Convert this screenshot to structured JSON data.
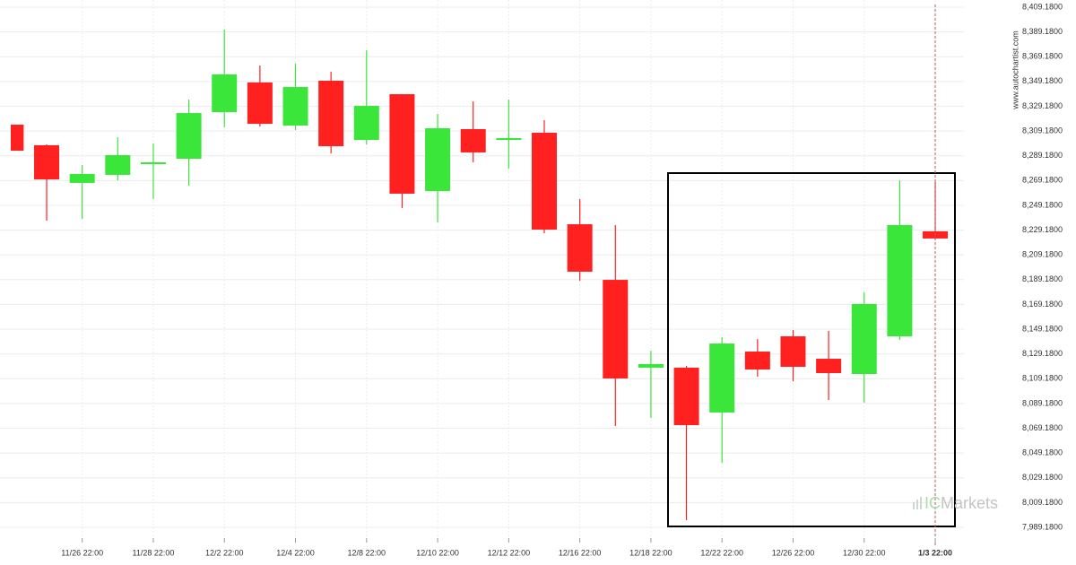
{
  "chart_data": {
    "type": "candlestick",
    "categories": [
      null,
      null,
      "11/26 22:00",
      null,
      "11/28 22:00",
      null,
      "12/2 22:00",
      null,
      "12/4 22:00",
      null,
      "12/8 22:00",
      null,
      "12/10 22:00",
      null,
      "12/12 22:00",
      null,
      "12/16 22:00",
      null,
      "12/18 22:00",
      null,
      "12/22 22:00",
      null,
      "12/26 22:00",
      null,
      "12/30 22:00",
      null,
      "1/3 22:00"
    ],
    "open": [
      8314.3,
      8297.7,
      8267.3,
      8273.8,
      8282.5,
      8286.8,
      8324.4,
      8348.4,
      8313.6,
      8349.8,
      8302.0,
      8338.9,
      8260.7,
      8310.7,
      8302.0,
      8307.8,
      8233.9,
      8189.0,
      8118.1,
      8118.1,
      8081.9,
      8131.1,
      8143.4,
      8125.3,
      8113.0,
      8143.4,
      8228.2
    ],
    "high": [
      8314.3,
      8298.4,
      8281.8,
      8304.2,
      8299.1,
      8334.6,
      8391.1,
      8362.1,
      8363.6,
      8357.0,
      8374.4,
      8338.9,
      8323.0,
      8333.1,
      8334.6,
      8317.9,
      8254.2,
      8233.2,
      8131.8,
      8119.5,
      8142.7,
      8141.2,
      8148.5,
      8147.8,
      8178.9,
      8269.4,
      8268.0
    ],
    "low": [
      8293.3,
      8236.8,
      8238.3,
      8269.4,
      8254.2,
      8265.1,
      8312.2,
      8312.9,
      8310.0,
      8291.1,
      8298.4,
      8247.0,
      8235.4,
      8283.9,
      8278.9,
      8226.7,
      8188.3,
      8071.0,
      8077.5,
      7995.0,
      8041.3,
      8110.8,
      8107.2,
      8092.0,
      8089.9,
      8140.5,
      8221.6
    ],
    "close": [
      8293.3,
      8270.1,
      8274.5,
      8289.7,
      8283.9,
      8323.7,
      8354.9,
      8315.0,
      8344.7,
      8296.9,
      8329.5,
      8258.6,
      8311.4,
      8291.9,
      8303.5,
      8229.6,
      8195.6,
      8109.4,
      8121.0,
      8071.7,
      8137.6,
      8116.6,
      8118.8,
      8113.7,
      8169.5,
      8233.2,
      8222.4
    ],
    "up_color": "#3ae63a",
    "down_color": "#ff2020",
    "ylim": [
      7989.18,
      8409.18
    ],
    "yticks": [
      {
        "value": 7989.18,
        "label": "7,989.1800"
      },
      {
        "value": 8009.18,
        "label": "8,009.1800"
      },
      {
        "value": 8029.18,
        "label": "8,029.1800"
      },
      {
        "value": 8049.18,
        "label": "8,049.1800"
      },
      {
        "value": 8069.18,
        "label": "8,069.1800"
      },
      {
        "value": 8089.18,
        "label": "8,089.1800"
      },
      {
        "value": 8109.18,
        "label": "8,109.1800"
      },
      {
        "value": 8129.18,
        "label": "8,129.1800"
      },
      {
        "value": 8149.18,
        "label": "8,149.1800"
      },
      {
        "value": 8169.18,
        "label": "8,169.1800"
      },
      {
        "value": 8189.18,
        "label": "8,189.1800"
      },
      {
        "value": 8209.18,
        "label": "8,209.1800"
      },
      {
        "value": 8229.18,
        "label": "8,229.1800"
      },
      {
        "value": 8249.18,
        "label": "8,249.1800"
      },
      {
        "value": 8269.18,
        "label": "8,269.1800"
      },
      {
        "value": 8289.18,
        "label": "8,289.1800"
      },
      {
        "value": 8309.18,
        "label": "8,309.1800"
      },
      {
        "value": 8329.18,
        "label": "8,329.1800"
      },
      {
        "value": 8349.18,
        "label": "8,349.1800"
      },
      {
        "value": 8369.18,
        "label": "8,369.1800"
      },
      {
        "value": 8389.18,
        "label": "8,389.1800"
      },
      {
        "value": 8409.18,
        "label": "8,409.1800"
      }
    ],
    "grid": true,
    "source": "www.autochartist.com",
    "logo": [
      "IC",
      "Markets"
    ]
  }
}
